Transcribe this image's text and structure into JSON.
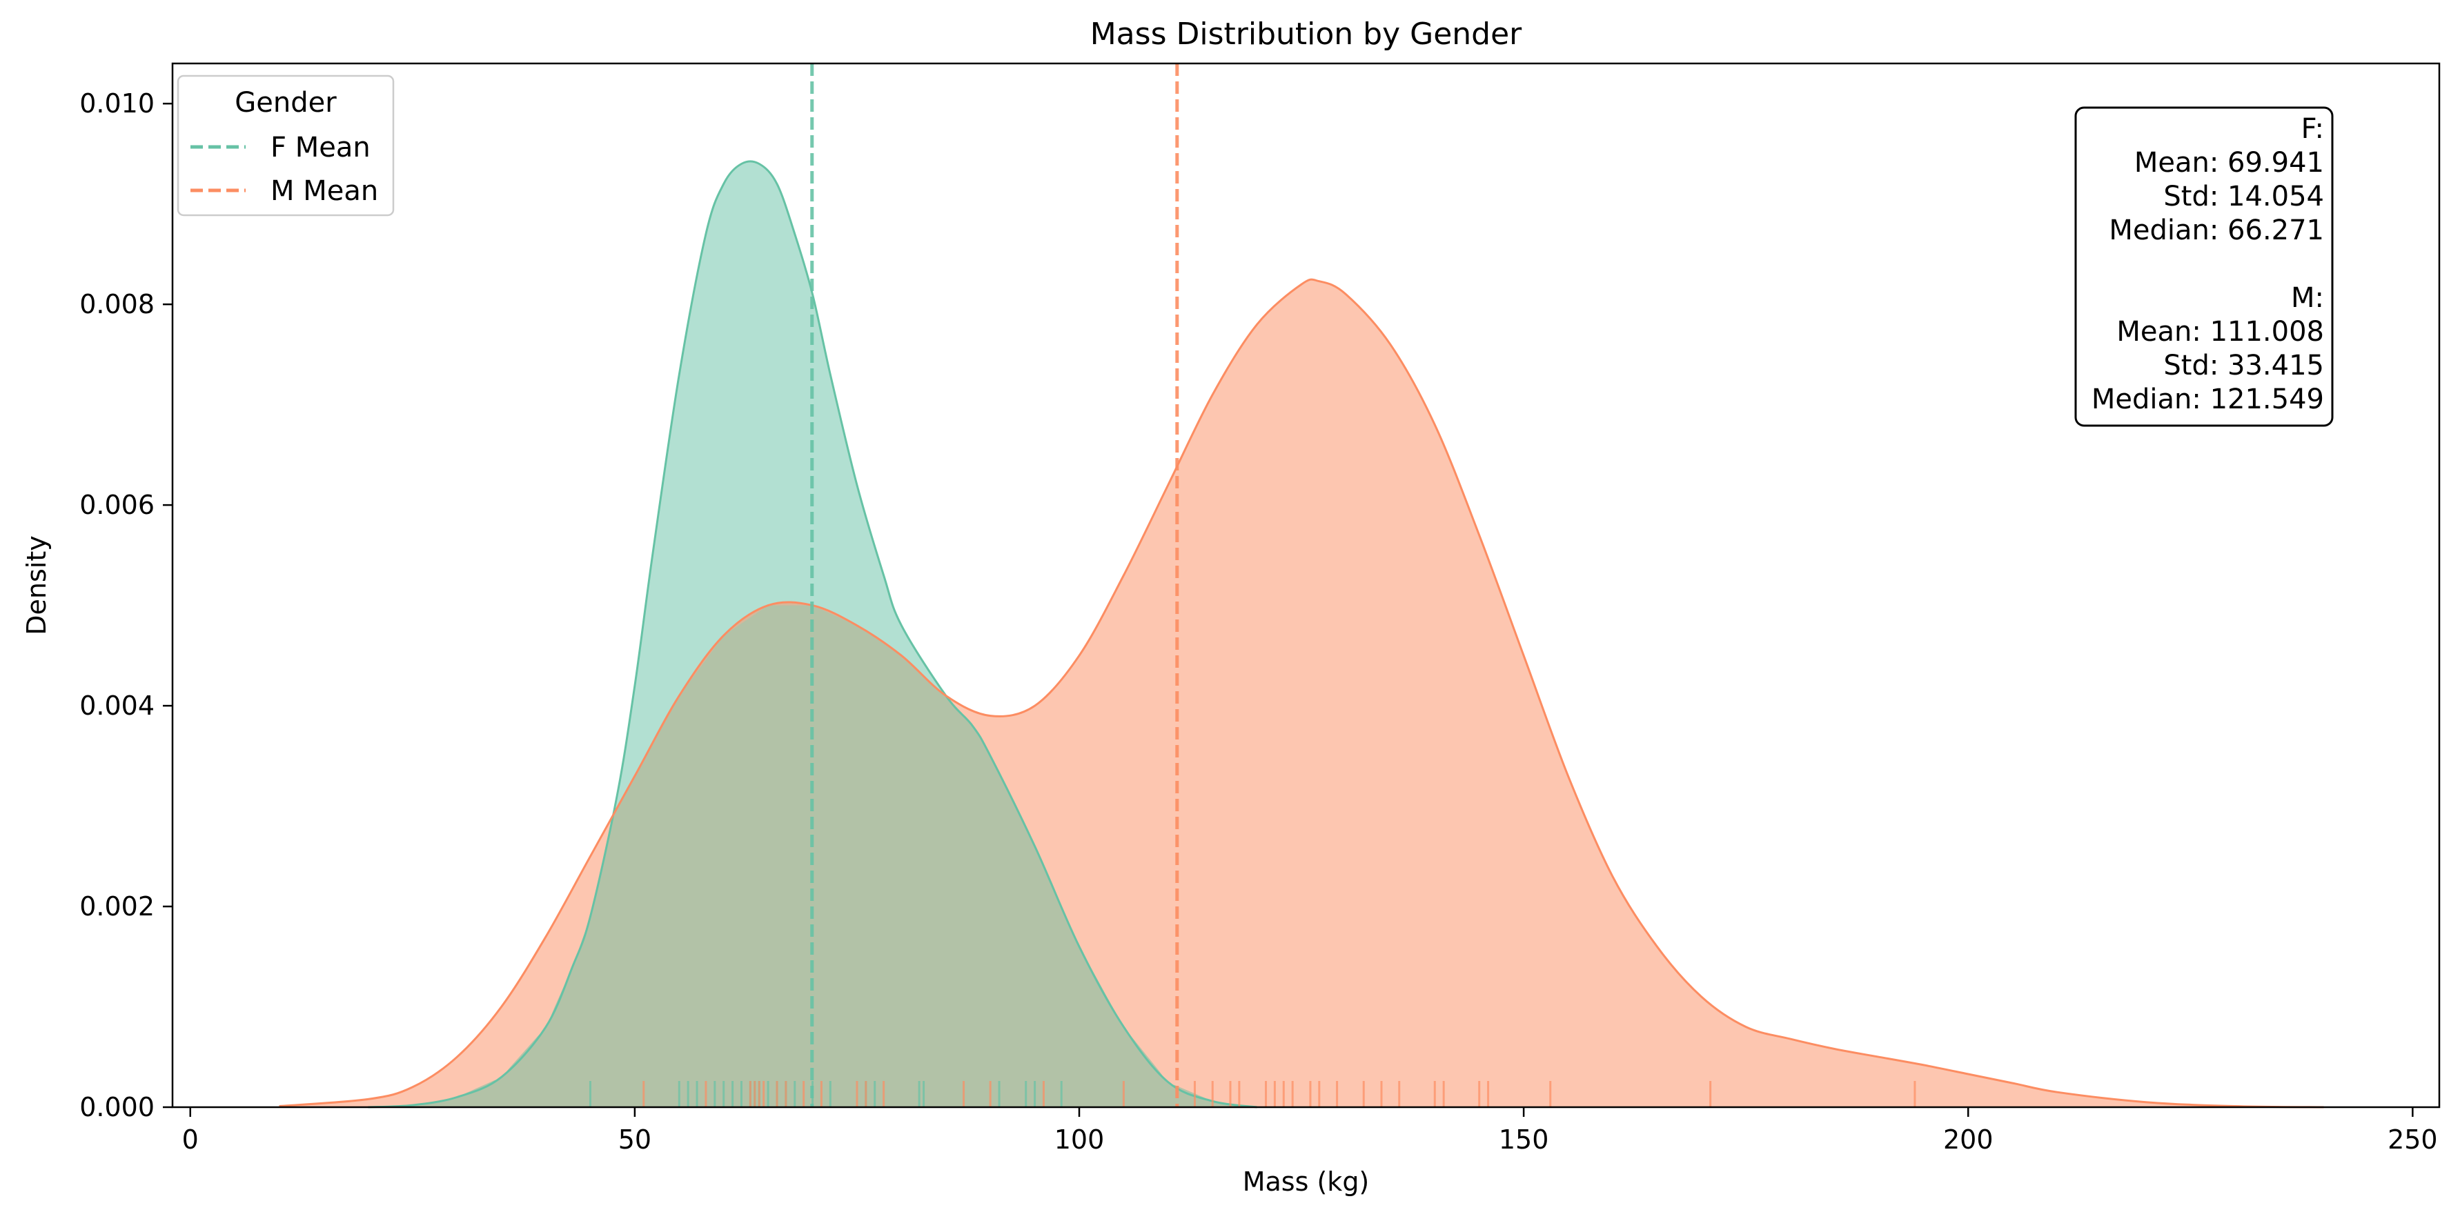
{
  "chart_data": {
    "type": "area",
    "title": "Mass Distribution by Gender",
    "xlabel": "Mass (kg)",
    "ylabel": "Density",
    "xlim": [
      -2,
      253
    ],
    "ylim": [
      0,
      0.0104
    ],
    "xticks": [
      0,
      50,
      100,
      150,
      200,
      250
    ],
    "xtick_labels": [
      "0",
      "50",
      "100",
      "150",
      "200",
      "250"
    ],
    "yticks": [
      0.0,
      0.002,
      0.004,
      0.006,
      0.008,
      0.01
    ],
    "ytick_labels": [
      "0.000",
      "0.002",
      "0.004",
      "0.006",
      "0.008",
      "0.010"
    ],
    "grid": false,
    "legend": {
      "title": "Gender",
      "placement": "top-left",
      "entries": [
        "F Mean",
        "M Mean"
      ]
    },
    "series": [
      {
        "key": "F",
        "color": "#66c2a5",
        "mean": 69.941,
        "density": {
          "x": [
            20,
            25,
            30,
            35,
            40,
            43,
            45,
            48,
            50,
            52,
            55,
            58,
            60,
            62,
            64,
            66,
            68,
            70,
            72,
            75,
            78,
            80,
            85,
            88,
            90,
            95,
            100,
            105,
            110,
            115,
            120
          ],
          "y": [
            0.0,
            2e-05,
            0.0001,
            0.0003,
            0.0008,
            0.0014,
            0.0019,
            0.0031,
            0.0042,
            0.0055,
            0.0073,
            0.0087,
            0.0092,
            0.0094,
            0.0094,
            0.0092,
            0.0087,
            0.0081,
            0.0073,
            0.0062,
            0.0053,
            0.0048,
            0.0041,
            0.0038,
            0.0035,
            0.0026,
            0.0016,
            0.0008,
            0.00025,
            6e-05,
            0.0
          ]
        },
        "rug": [
          45,
          55,
          56,
          57,
          59,
          60,
          61,
          62,
          63,
          63.5,
          64,
          65,
          66,
          67,
          68,
          70,
          72,
          76,
          77,
          82,
          82.5,
          91,
          94,
          95,
          98
        ]
      },
      {
        "key": "M",
        "color": "#fc8d62",
        "mean": 111.008,
        "density": {
          "x": [
            10,
            20,
            25,
            30,
            35,
            40,
            45,
            50,
            55,
            60,
            65,
            70,
            75,
            80,
            85,
            90,
            95,
            100,
            105,
            110,
            115,
            120,
            125,
            127,
            130,
            135,
            140,
            145,
            150,
            155,
            160,
            165,
            170,
            175,
            180,
            185,
            190,
            195,
            200,
            205,
            210,
            220,
            230,
            240
          ],
          "y": [
            1e-05,
            8e-05,
            0.0002,
            0.0005,
            0.001,
            0.0017,
            0.0025,
            0.0033,
            0.0041,
            0.0047,
            0.005,
            0.005,
            0.0048,
            0.0045,
            0.0041,
            0.0039,
            0.004,
            0.0045,
            0.0053,
            0.0062,
            0.0071,
            0.0078,
            0.0082,
            0.00823,
            0.0081,
            0.0076,
            0.0068,
            0.0057,
            0.0045,
            0.0033,
            0.0023,
            0.0016,
            0.0011,
            0.0008,
            0.00068,
            0.00058,
            0.0005,
            0.00042,
            0.00033,
            0.00024,
            0.00015,
            5e-05,
            1e-05,
            0.0
          ]
        },
        "rug": [
          51,
          58,
          63,
          63.5,
          64,
          64.5,
          66,
          67,
          69,
          71,
          75,
          76,
          78,
          87,
          90,
          96,
          105,
          113,
          115,
          117,
          118,
          121,
          122,
          123,
          124,
          126,
          127,
          129,
          132,
          134,
          136,
          140,
          141,
          145,
          146,
          153,
          171,
          194
        ]
      }
    ],
    "overlap_color": "#b0c2a8",
    "stats_box": {
      "placement": "top-right",
      "lines": [
        "F:",
        "Mean: 69.941",
        "Std: 14.054",
        "Median: 66.271",
        "",
        "M:",
        "Mean: 111.008",
        "Std: 33.415",
        "Median: 121.549"
      ]
    }
  }
}
